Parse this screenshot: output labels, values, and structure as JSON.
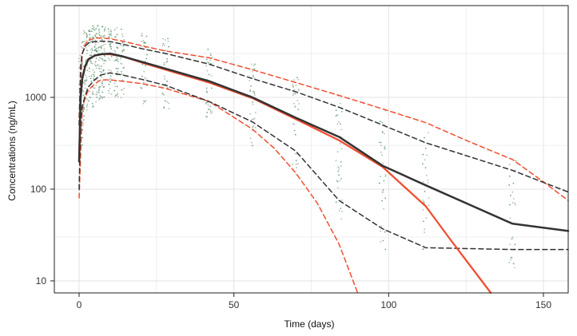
{
  "chart_data": {
    "type": "line",
    "title": "",
    "xlabel": "Time (days)",
    "ylabel": "Concentrations (ng/mL)",
    "xlim": [
      -8,
      158
    ],
    "ylim": [
      7.4,
      10000
    ],
    "y_scale": "log",
    "grid": true,
    "x_ticks": [
      0,
      50,
      100,
      150
    ],
    "x_tick_labels": [
      "0",
      "50",
      "100",
      "150"
    ],
    "y_ticks": [
      10,
      100,
      1000
    ],
    "y_tick_labels": [
      "10",
      "100",
      "1000"
    ],
    "colors": {
      "observed_band": "#333333",
      "predicted": "#f04e30",
      "points": "#8fa898",
      "grid": "#e3e3e3",
      "frame": "#222222"
    },
    "series": [
      {
        "name": "Observed median",
        "style": "solid",
        "color": "#333333",
        "x": [
          0,
          0.5,
          1,
          2,
          3,
          5,
          7,
          10,
          14,
          21,
          28,
          42,
          56,
          70,
          84,
          98,
          112,
          140,
          158
        ],
        "y": [
          200,
          1000,
          1600,
          2200,
          2600,
          2850,
          2950,
          3000,
          2800,
          2400,
          2050,
          1500,
          1000,
          600,
          370,
          180,
          110,
          42,
          35
        ]
      },
      {
        "name": "Observed 95th percentile",
        "style": "dashed",
        "color": "#333333",
        "x": [
          0,
          0.5,
          1,
          2,
          3,
          5,
          7,
          10,
          14,
          21,
          28,
          42,
          56,
          70,
          84,
          98,
          112,
          140,
          158
        ],
        "y": [
          500,
          2200,
          3000,
          3600,
          3900,
          4050,
          4100,
          4050,
          3800,
          3350,
          3000,
          2300,
          1600,
          1150,
          780,
          500,
          320,
          160,
          93
        ]
      },
      {
        "name": "Observed 5th percentile",
        "style": "dashed",
        "color": "#333333",
        "x": [
          0,
          0.5,
          1,
          2,
          3,
          5,
          7,
          10,
          14,
          21,
          28,
          42,
          56,
          70,
          84,
          98,
          112,
          140,
          158
        ],
        "y": [
          100,
          550,
          800,
          1050,
          1300,
          1550,
          1750,
          1850,
          1750,
          1550,
          1350,
          900,
          540,
          260,
          75,
          37,
          23,
          22,
          22
        ]
      },
      {
        "name": "Predicted median",
        "style": "solid",
        "color": "#f04e30",
        "x": [
          0,
          0.5,
          1,
          2,
          3,
          5,
          7,
          10,
          14,
          21,
          28,
          42,
          56,
          70,
          84,
          98,
          112,
          120,
          133
        ],
        "y": [
          200,
          1000,
          1600,
          2200,
          2600,
          2850,
          2950,
          2950,
          2800,
          2350,
          2000,
          1450,
          980,
          580,
          340,
          175,
          65,
          28,
          7.4
        ]
      },
      {
        "name": "Predicted 95th percentile",
        "style": "dashed",
        "color": "#f04e30",
        "x": [
          0,
          1,
          2,
          3,
          5,
          7,
          10,
          14,
          21,
          28,
          42,
          56,
          70,
          84,
          98,
          112,
          126,
          140,
          150,
          158
        ],
        "y": [
          600,
          3000,
          3800,
          4200,
          4400,
          4450,
          4350,
          4100,
          3600,
          3200,
          2700,
          2000,
          1450,
          1050,
          750,
          530,
          330,
          210,
          120,
          75
        ]
      },
      {
        "name": "Predicted 5th percentile",
        "style": "dashed",
        "color": "#f04e30",
        "x": [
          0,
          1,
          2,
          3,
          5,
          7,
          10,
          14,
          21,
          28,
          42,
          56,
          63,
          70,
          77,
          84,
          90
        ],
        "y": [
          80,
          750,
          1000,
          1200,
          1400,
          1550,
          1550,
          1500,
          1400,
          1250,
          900,
          450,
          280,
          150,
          70,
          25,
          7.4
        ]
      }
    ],
    "observation_times": [
      0.5,
      1,
      2,
      3,
      4,
      5,
      6,
      7,
      8,
      10,
      12,
      14,
      21,
      28,
      42,
      56,
      70,
      84,
      98,
      112,
      140
    ]
  }
}
